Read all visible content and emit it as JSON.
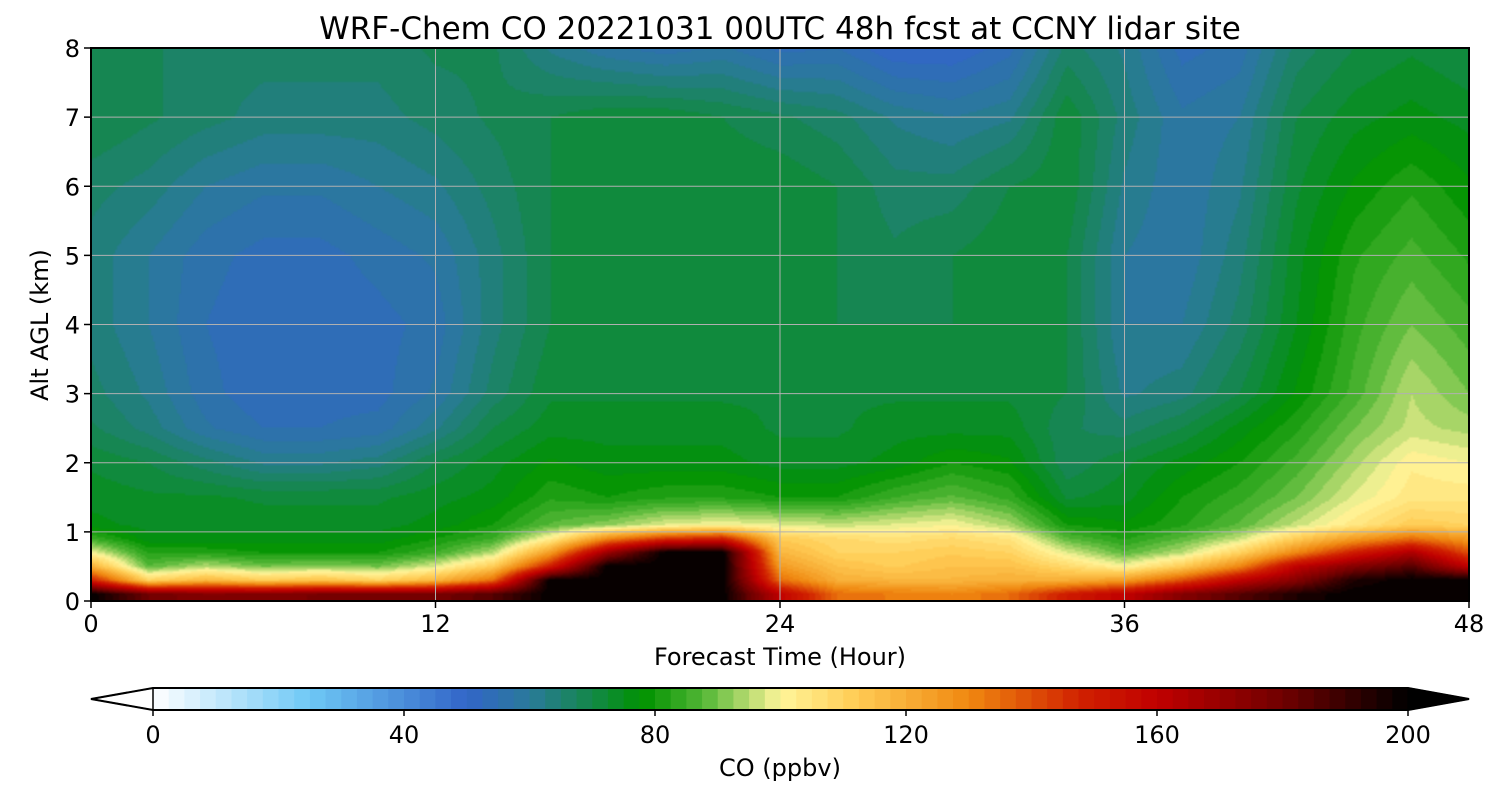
{
  "chart_data": {
    "type": "heatmap",
    "title": "WRF-Chem CO  20221031 00UTC 48h fcst at CCNY lidar site",
    "xlabel": "Forecast Time (Hour)",
    "ylabel": "Alt AGL (km)",
    "xlim": [
      0,
      48
    ],
    "ylim": [
      0,
      8
    ],
    "xticks": [
      0,
      12,
      24,
      36,
      48
    ],
    "yticks": [
      0,
      1,
      2,
      3,
      4,
      5,
      6,
      7,
      8
    ],
    "grid": true,
    "x": [
      0,
      2,
      4,
      6,
      8,
      10,
      12,
      14,
      16,
      18,
      20,
      22,
      24,
      26,
      28,
      30,
      32,
      34,
      36,
      38,
      40,
      42,
      44,
      46,
      48
    ],
    "y": [
      0.1,
      0.3,
      0.5,
      0.7,
      0.9,
      1.1,
      1.5,
      2.0,
      2.5,
      3.0,
      4.0,
      5.0,
      6.0,
      7.0,
      8.0
    ],
    "z": [
      [
        200,
        180,
        175,
        176,
        178,
        180,
        178,
        185,
        200,
        200,
        200,
        200,
        160,
        135,
        132,
        130,
        135,
        150,
        160,
        175,
        185,
        195,
        200,
        200,
        200
      ],
      [
        150,
        110,
        118,
        112,
        115,
        110,
        118,
        135,
        200,
        200,
        200,
        200,
        135,
        120,
        118,
        118,
        120,
        120,
        125,
        140,
        160,
        175,
        195,
        200,
        200
      ],
      [
        120,
        88,
        95,
        90,
        92,
        90,
        98,
        112,
        150,
        200,
        200,
        200,
        125,
        115,
        112,
        115,
        115,
        108,
        100,
        112,
        130,
        160,
        175,
        185,
        160
      ],
      [
        100,
        82,
        82,
        80,
        80,
        80,
        85,
        95,
        125,
        170,
        200,
        200,
        118,
        110,
        110,
        112,
        110,
        98,
        88,
        95,
        110,
        130,
        150,
        165,
        140
      ],
      [
        85,
        76,
        76,
        76,
        76,
        76,
        80,
        85,
        102,
        130,
        145,
        150,
        112,
        108,
        106,
        108,
        105,
        88,
        82,
        88,
        96,
        112,
        125,
        135,
        125
      ],
      [
        76,
        74,
        74,
        74,
        74,
        74,
        76,
        80,
        88,
        92,
        98,
        100,
        98,
        96,
        98,
        100,
        94,
        80,
        78,
        82,
        88,
        96,
        104,
        112,
        110
      ],
      [
        74,
        73,
        73,
        72,
        72,
        72,
        74,
        76,
        82,
        80,
        82,
        82,
        80,
        80,
        85,
        88,
        84,
        72,
        74,
        80,
        84,
        90,
        98,
        104,
        104
      ],
      [
        72,
        70,
        66,
        62,
        62,
        64,
        70,
        74,
        78,
        76,
        76,
        76,
        74,
        74,
        76,
        80,
        78,
        68,
        72,
        76,
        80,
        86,
        94,
        102,
        100
      ],
      [
        68,
        64,
        58,
        55,
        55,
        56,
        62,
        70,
        74,
        74,
        74,
        74,
        72,
        72,
        74,
        74,
        74,
        68,
        66,
        70,
        76,
        82,
        90,
        96,
        94
      ],
      [
        66,
        62,
        56,
        53,
        54,
        54,
        58,
        66,
        72,
        72,
        72,
        72,
        72,
        72,
        72,
        72,
        72,
        70,
        62,
        64,
        70,
        78,
        86,
        95,
        90
      ],
      [
        64,
        60,
        55,
        53,
        53,
        54,
        56,
        64,
        70,
        72,
        72,
        72,
        72,
        70,
        70,
        70,
        72,
        70,
        60,
        60,
        66,
        75,
        84,
        90,
        86
      ],
      [
        64,
        60,
        56,
        54,
        54,
        56,
        58,
        64,
        70,
        72,
        72,
        72,
        72,
        70,
        68,
        70,
        72,
        70,
        60,
        58,
        64,
        74,
        82,
        86,
        82
      ],
      [
        66,
        64,
        60,
        58,
        58,
        60,
        62,
        66,
        70,
        72,
        72,
        72,
        72,
        70,
        66,
        66,
        70,
        72,
        62,
        58,
        62,
        72,
        78,
        82,
        78
      ],
      [
        70,
        68,
        66,
        64,
        64,
        64,
        66,
        68,
        70,
        72,
        72,
        70,
        68,
        66,
        62,
        60,
        62,
        72,
        64,
        58,
        60,
        70,
        74,
        76,
        74
      ],
      [
        70,
        68,
        66,
        66,
        66,
        66,
        68,
        68,
        62,
        58,
        56,
        58,
        54,
        55,
        50,
        50,
        54,
        66,
        62,
        54,
        56,
        66,
        70,
        72,
        70
      ]
    ],
    "colorbar": {
      "label": "CO  (ppbv)",
      "min": 0,
      "max": 200,
      "ticks": [
        0,
        40,
        80,
        120,
        160,
        200
      ],
      "extend": "both",
      "levels": 80,
      "colormap": [
        [
          0,
          "#ffffff"
        ],
        [
          25,
          "#6ec8f5"
        ],
        [
          50,
          "#3265c8"
        ],
        [
          60,
          "#2a7a9a"
        ],
        [
          70,
          "#138848"
        ],
        [
          78,
          "#009200"
        ],
        [
          88,
          "#56b838"
        ],
        [
          100,
          "#fff59a"
        ],
        [
          112,
          "#ffcc55"
        ],
        [
          130,
          "#f08810"
        ],
        [
          148,
          "#d02000"
        ],
        [
          160,
          "#c00000"
        ],
        [
          180,
          "#700000"
        ],
        [
          200,
          "#000000"
        ]
      ]
    }
  }
}
